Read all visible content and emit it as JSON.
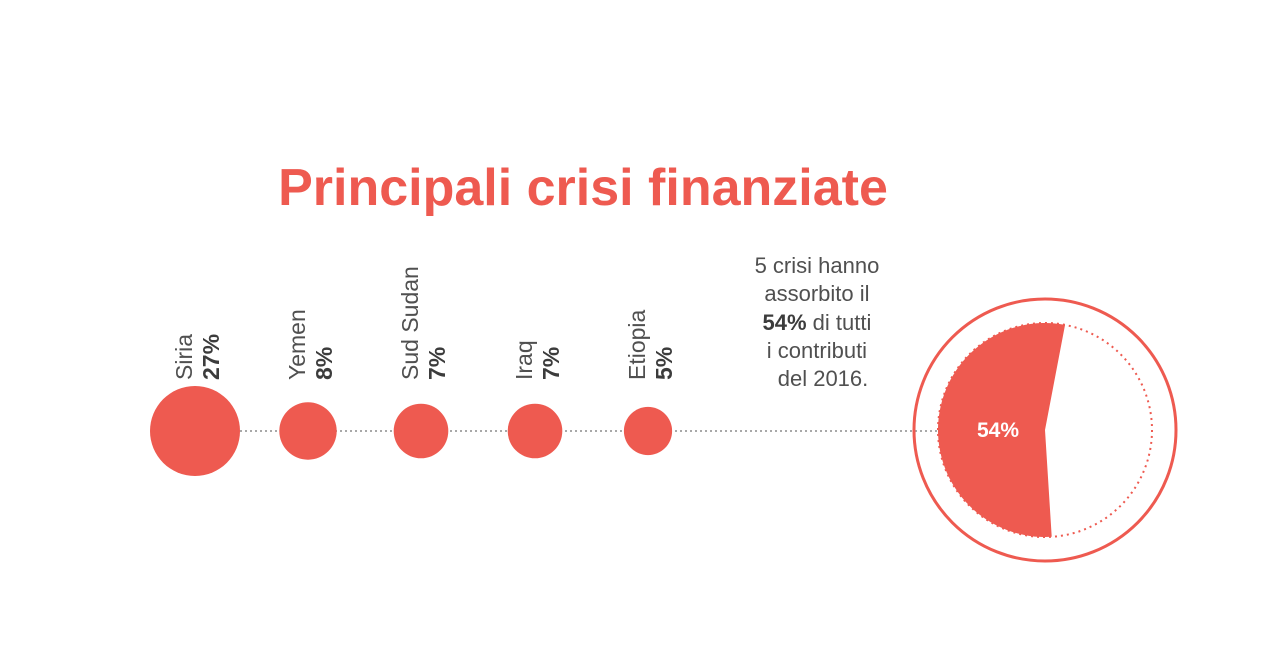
{
  "chart_data": {
    "type": "bubble",
    "title": "Principali crisi finanziate",
    "categories": [
      "Siria",
      "Yemen",
      "Sud Sudan",
      "Iraq",
      "Etiopia"
    ],
    "values": [
      27,
      8,
      7,
      7,
      5
    ],
    "value_labels": [
      "27%",
      "8%",
      "7%",
      "7%",
      "5%"
    ],
    "summary": {
      "line1": "5 crisi hanno",
      "line2": "assorbito il",
      "line3_bold": "54%",
      "line3_rest": " di tutti",
      "line4": "i contributi",
      "line5": "del 2016."
    },
    "total": {
      "value": 54,
      "label": "54%"
    }
  },
  "colors": {
    "accent": "#ee5a50",
    "text": "#505050",
    "text_bold": "#3c3c3c",
    "connector": "#8c8c8c"
  }
}
